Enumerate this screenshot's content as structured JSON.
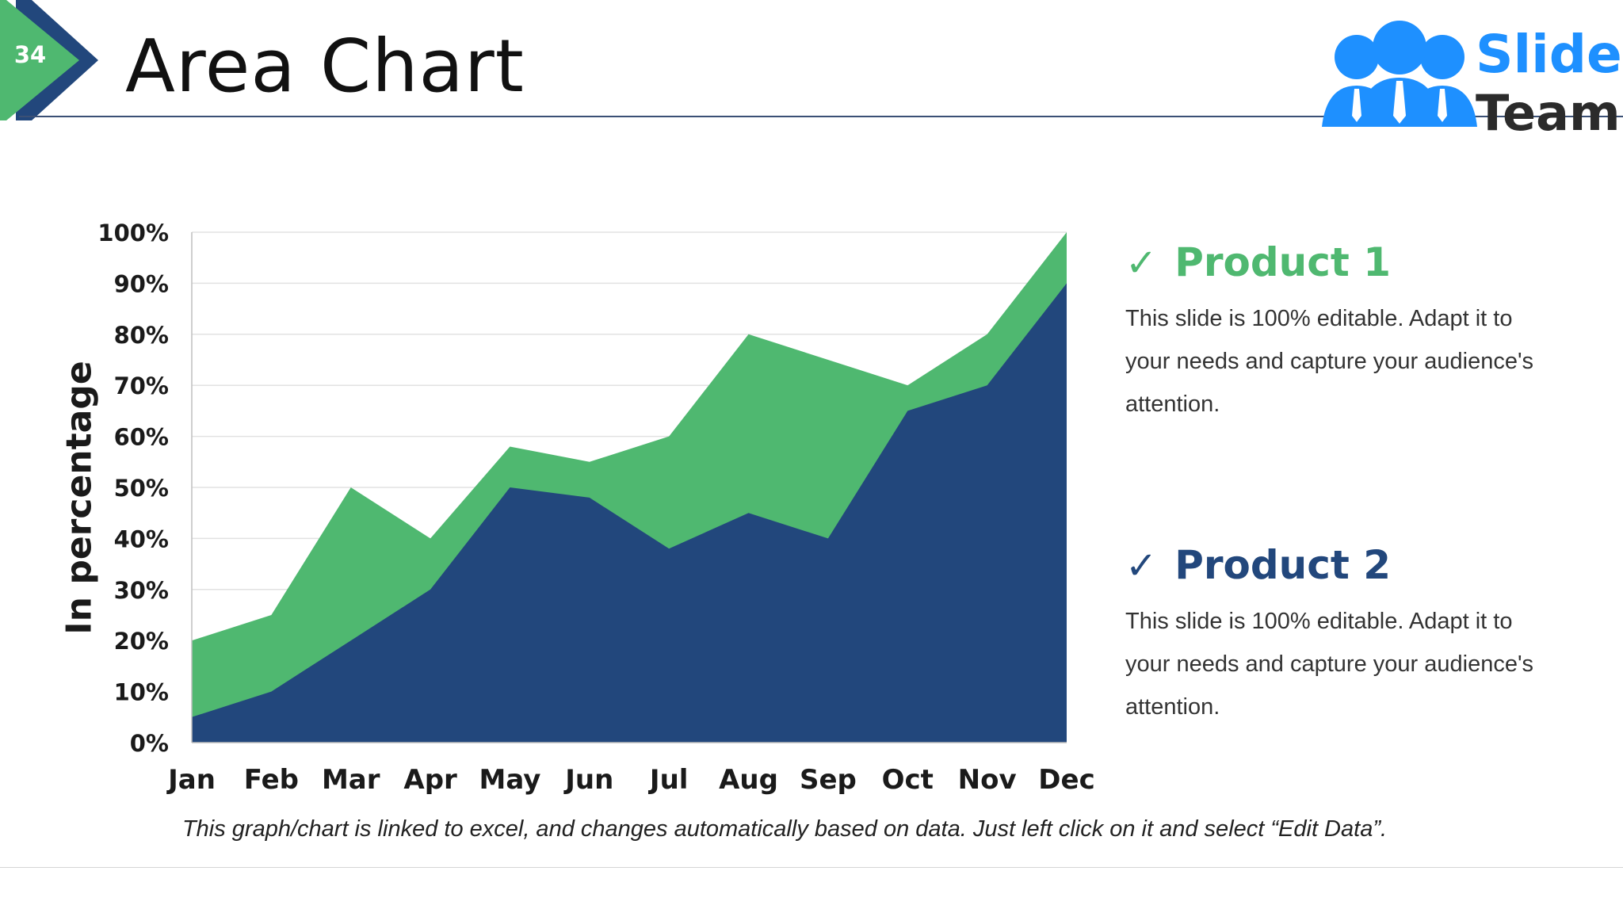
{
  "slide": {
    "number": "34",
    "title": "Area Chart"
  },
  "logo": {
    "line1": "Slide",
    "line2": "Team",
    "icon": "team-people-icon"
  },
  "colors": {
    "product1": "#4fb870",
    "product2": "#22477c",
    "accent": "#1e90ff"
  },
  "products": [
    {
      "icon": "check-icon",
      "check": "✓",
      "name": "Product 1",
      "color": "#4fb870",
      "description": "This slide is 100% editable. Adapt it to your needs and capture your audience's attention."
    },
    {
      "icon": "check-icon",
      "check": "✓",
      "name": "Product 2",
      "color": "#22477c",
      "description": "This slide is 100% editable. Adapt it to your needs and capture your audience's attention."
    }
  ],
  "chart_data": {
    "type": "area",
    "title": "",
    "xlabel": "",
    "ylabel": "In percentage",
    "categories": [
      "Jan",
      "Feb",
      "Mar",
      "Apr",
      "May",
      "Jun",
      "Jul",
      "Aug",
      "Sep",
      "Oct",
      "Nov",
      "Dec"
    ],
    "ylim": [
      0,
      100
    ],
    "yticks": [
      "0%",
      "10%",
      "20%",
      "30%",
      "40%",
      "50%",
      "60%",
      "70%",
      "80%",
      "90%",
      "100%"
    ],
    "grid": true,
    "series": [
      {
        "name": "Product 1",
        "color": "#4fb870",
        "values": [
          20,
          25,
          50,
          40,
          58,
          55,
          60,
          80,
          75,
          70,
          80,
          100
        ]
      },
      {
        "name": "Product 2",
        "color": "#22477c",
        "values": [
          5,
          10,
          20,
          30,
          50,
          48,
          38,
          45,
          40,
          65,
          70,
          90
        ]
      }
    ]
  },
  "footnote": "This graph/chart is linked to excel, and changes automatically based on data. Just left click on it and select “Edit Data”."
}
